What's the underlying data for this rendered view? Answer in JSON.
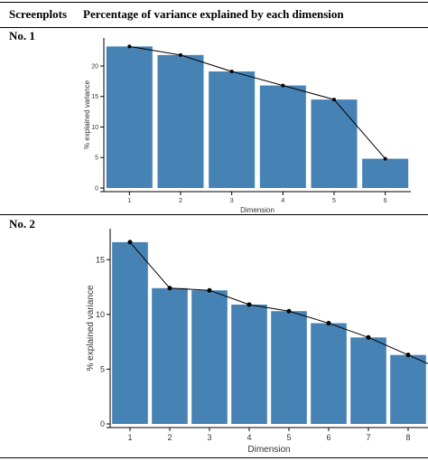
{
  "header": {
    "col1": "Screenplots",
    "col2": "Percentage of variance explained by each dimension"
  },
  "panels": [
    {
      "label": "No. 1"
    },
    {
      "label": "No. 2"
    }
  ],
  "colors": {
    "bar": "#4682B4",
    "line": "#000000",
    "axis": "#000000"
  },
  "chart_data": [
    {
      "type": "bar",
      "categories": [
        "1",
        "2",
        "3",
        "4",
        "5",
        "6"
      ],
      "values": [
        23.2,
        21.8,
        19.1,
        16.8,
        14.5,
        4.8
      ],
      "line_overlay": true,
      "title": "",
      "xlabel": "Dimension",
      "ylabel": "% explained variance",
      "ylim": [
        0,
        24
      ],
      "yticks": [
        0,
        5,
        10,
        15,
        20
      ],
      "grid": false
    },
    {
      "type": "bar",
      "categories": [
        "1",
        "2",
        "3",
        "4",
        "5",
        "6",
        "7",
        "8"
      ],
      "values": [
        16.6,
        12.4,
        12.2,
        10.9,
        10.3,
        9.2,
        7.9,
        6.3
      ],
      "line_overlay": true,
      "title": "",
      "xlabel": "Dimension",
      "ylabel": "% explained variance",
      "ylim": [
        0,
        17.5
      ],
      "yticks": [
        0,
        5,
        10,
        15
      ],
      "grid": false
    }
  ]
}
